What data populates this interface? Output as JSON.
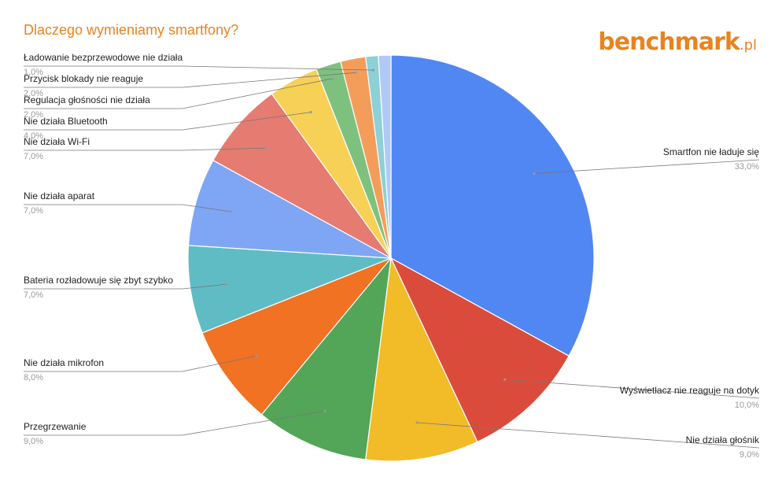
{
  "title": "Dlaczego wymieniamy smartfony?",
  "brand": {
    "name": "benchmark",
    "suffix": ".pl",
    "color": "#e8831f"
  },
  "chart_data": {
    "type": "pie",
    "title": "Dlaczego wymieniamy smartfony?",
    "slices": [
      {
        "label": "Smartfon nie ładuje się",
        "value": 33.0,
        "display": "33,0%",
        "color": "#5187f2",
        "side": "right"
      },
      {
        "label": "Wyświetlacz nie reaguje na dotyk",
        "value": 10.0,
        "display": "10,0%",
        "color": "#db4b3c",
        "side": "right"
      },
      {
        "label": "Nie działa głośnik",
        "value": 9.0,
        "display": "9,0%",
        "color": "#f2bb28",
        "side": "right"
      },
      {
        "label": "Przegrzewanie",
        "value": 9.0,
        "display": "9,0%",
        "color": "#53a657",
        "side": "left"
      },
      {
        "label": "Nie działa mikrofon",
        "value": 8.0,
        "display": "8,0%",
        "color": "#f07222",
        "side": "left"
      },
      {
        "label": "Bateria rozładowuje się zbyt szybko",
        "value": 7.0,
        "display": "7,0%",
        "color": "#60bcc4",
        "side": "left"
      },
      {
        "label": "Nie działa aparat",
        "value": 7.0,
        "display": "7,0%",
        "color": "#7fa6f4",
        "side": "left"
      },
      {
        "label": "Nie działa Wi-Fi",
        "value": 7.0,
        "display": "7,0%",
        "color": "#e57b71",
        "side": "left"
      },
      {
        "label": "Nie działa Bluetooth",
        "value": 4.0,
        "display": "4,0%",
        "color": "#f6d156",
        "side": "left"
      },
      {
        "label": "Regulacja głośności nie działa",
        "value": 2.0,
        "display": "2,0%",
        "color": "#7ec17f",
        "side": "left"
      },
      {
        "label": "Przycisk blokady nie reaguje",
        "value": 2.0,
        "display": "2,0%",
        "color": "#f49d5a",
        "side": "left"
      },
      {
        "label": "Ładowanie bezprzewodowe nie działa",
        "value": 1.0,
        "display": "1,0%",
        "color": "#8dd0d6",
        "side": "left"
      },
      {
        "label": "",
        "value": 1.0,
        "display": "",
        "color": "#b1c9f7",
        "side": "none"
      }
    ]
  }
}
